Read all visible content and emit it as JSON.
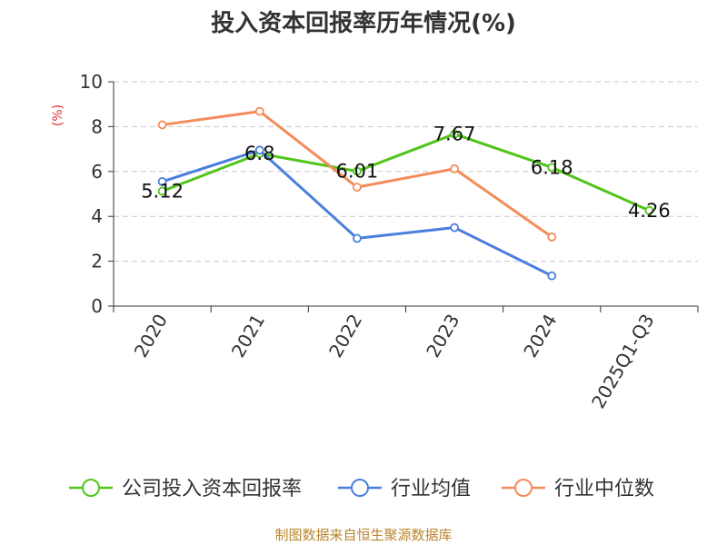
{
  "chart_data": {
    "type": "line",
    "title": "投入资本回报率历年情况(%)",
    "ylabel": "(%)",
    "xlabel": "",
    "categories": [
      "2020",
      "2021",
      "2022",
      "2023",
      "2024",
      "2025Q1-Q3"
    ],
    "ylim": [
      0,
      10
    ],
    "yticks": [
      0,
      2,
      4,
      6,
      8,
      10
    ],
    "grid": true,
    "legend_position": "bottom",
    "series": [
      {
        "name": "公司投入资本回报率",
        "color": "#52c41a",
        "values": [
          5.12,
          6.8,
          6.01,
          7.67,
          6.18,
          4.26
        ],
        "data_labels": [
          "5.12",
          "6.8",
          "6.01",
          "7.67",
          "6.18",
          "4.26"
        ]
      },
      {
        "name": "行业均值",
        "color": "#4a7fdc",
        "values": [
          5.55,
          6.95,
          3.02,
          3.5,
          1.35,
          null
        ]
      },
      {
        "name": "行业中位数",
        "color": "#f58b5b",
        "values": [
          8.08,
          8.68,
          5.3,
          6.12,
          3.08,
          null
        ]
      }
    ],
    "source": "制图数据来自恒生聚源数据库"
  }
}
